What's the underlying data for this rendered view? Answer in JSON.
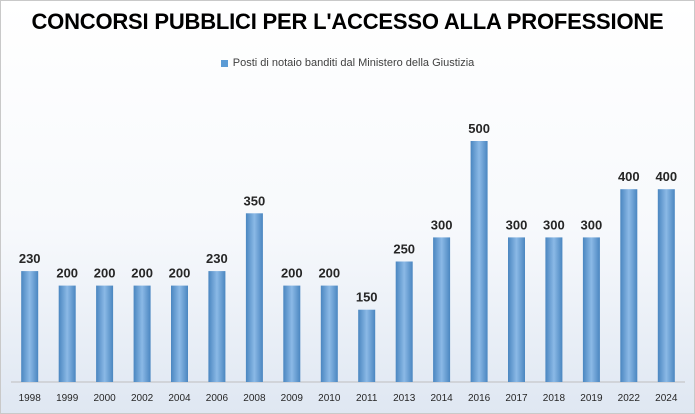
{
  "chart_data": {
    "type": "bar",
    "title": "CONCORSI PUBBLICI PER L'ACCESSO ALLA PROFESSIONE",
    "xlabel": "",
    "ylabel": "",
    "categories": [
      "1998",
      "1999",
      "2000",
      "2002",
      "2004",
      "2006",
      "2008",
      "2009",
      "2010",
      "2011",
      "2013",
      "2014",
      "2016",
      "2017",
      "2018",
      "2019",
      "2022",
      "2024"
    ],
    "series": [
      {
        "name": "Posti di notaio banditi dal Ministero della Giustizia",
        "values": [
          230,
          200,
          200,
          200,
          200,
          230,
          350,
          200,
          200,
          150,
          250,
          300,
          500,
          300,
          300,
          300,
          400,
          400
        ]
      }
    ],
    "ylim": [
      0,
      500
    ],
    "grid": false,
    "legend": "top",
    "data_labels": true,
    "colors": {
      "bar": "#5b9bd5",
      "bar_light": "#8bb9e6",
      "bar_dark": "#4a86c0",
      "label": "#262626"
    }
  }
}
